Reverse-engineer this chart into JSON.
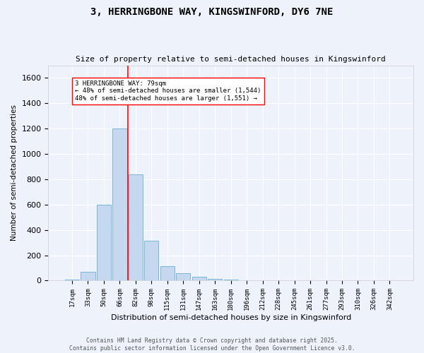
{
  "title": "3, HERRINGBONE WAY, KINGSWINFORD, DY6 7NE",
  "subtitle": "Size of property relative to semi-detached houses in Kingswinford",
  "xlabel": "Distribution of semi-detached houses by size in Kingswinford",
  "ylabel": "Number of semi-detached properties",
  "bar_labels": [
    "17sqm",
    "33sqm",
    "50sqm",
    "66sqm",
    "82sqm",
    "98sqm",
    "115sqm",
    "131sqm",
    "147sqm",
    "163sqm",
    "180sqm",
    "196sqm",
    "212sqm",
    "228sqm",
    "245sqm",
    "261sqm",
    "277sqm",
    "293sqm",
    "310sqm",
    "326sqm",
    "342sqm"
  ],
  "bar_values": [
    10,
    70,
    600,
    1200,
    840,
    315,
    115,
    60,
    30,
    15,
    10,
    0,
    0,
    0,
    0,
    0,
    0,
    0,
    0,
    0,
    0
  ],
  "bar_color": "#c5d8f0",
  "bar_edge_color": "#6baed6",
  "background_color": "#eef2fb",
  "grid_color": "#ffffff",
  "red_line_index": 3.5,
  "annotation_title": "3 HERRINGBONE WAY: 79sqm",
  "annotation_line1": "← 48% of semi-detached houses are smaller (1,544)",
  "annotation_line2": "48% of semi-detached houses are larger (1,551) →",
  "footer_line1": "Contains HM Land Registry data © Crown copyright and database right 2025.",
  "footer_line2": "Contains public sector information licensed under the Open Government Licence v3.0.",
  "ylim": [
    0,
    1700
  ],
  "yticks": [
    0,
    200,
    400,
    600,
    800,
    1000,
    1200,
    1400,
    1600
  ]
}
